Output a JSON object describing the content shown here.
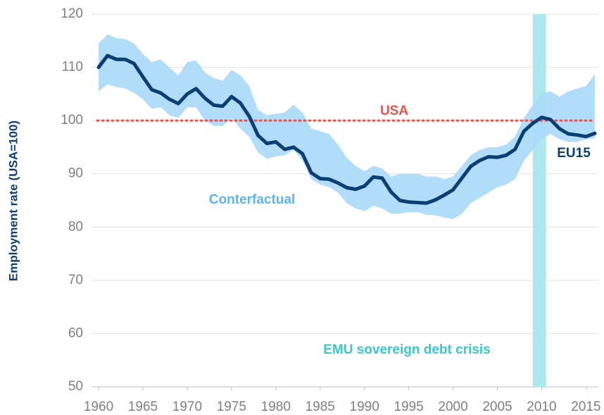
{
  "chart_data": {
    "type": "line",
    "y_axis_label": "Employment rate (USA=100)",
    "x": [
      1960,
      1961,
      1962,
      1963,
      1964,
      1965,
      1966,
      1967,
      1968,
      1969,
      1970,
      1971,
      1972,
      1973,
      1974,
      1975,
      1976,
      1977,
      1978,
      1979,
      1980,
      1981,
      1982,
      1983,
      1984,
      1985,
      1986,
      1987,
      1988,
      1989,
      1990,
      1991,
      1992,
      1993,
      1994,
      1995,
      1996,
      1997,
      1998,
      1999,
      2000,
      2001,
      2002,
      2003,
      2004,
      2005,
      2006,
      2007,
      2008,
      2009,
      2010,
      2011,
      2012,
      2013,
      2014,
      2015,
      2016
    ],
    "series": [
      {
        "name": "EU15",
        "color": "#0b3f73",
        "values": [
          110,
          112.2,
          111.5,
          111.5,
          110.7,
          108.2,
          105.8,
          105.2,
          104,
          103.2,
          105,
          106,
          104.2,
          102.9,
          102.7,
          104.5,
          103.3,
          100.8,
          97.2,
          95.7,
          96,
          94.6,
          95,
          93.8,
          90.2,
          89.1,
          89,
          88.3,
          87.4,
          87.1,
          87.7,
          89.4,
          89.2,
          86.6,
          85,
          84.7,
          84.6,
          84.5,
          85.1,
          86,
          87,
          89.2,
          91.4,
          92.5,
          93.2,
          93.1,
          93.5,
          94.6,
          98,
          99.5,
          100.6,
          100.2,
          98.5,
          97.5,
          97.3,
          97,
          97.6
        ]
      }
    ],
    "band": {
      "name": "Conterfactual",
      "color": "#aad9f8",
      "label_color": "#5bb5f0",
      "upper": [
        114.5,
        116.2,
        115.5,
        115.3,
        114.5,
        112.5,
        111,
        111.5,
        110,
        108.5,
        111,
        111.3,
        109,
        108,
        107.5,
        109.5,
        108.5,
        106.5,
        102,
        101,
        101.3,
        101.5,
        103,
        101.5,
        98.5,
        98,
        97.5,
        95.5,
        93,
        91.5,
        90.5,
        91.5,
        91,
        89.5,
        90,
        90,
        90,
        89.5,
        89.5,
        89,
        89.5,
        91.5,
        93.5,
        94.5,
        95,
        95,
        95.5,
        97,
        100.5,
        103,
        105,
        105.5,
        104.5,
        105.5,
        106,
        106.5,
        108.7
      ],
      "lower": [
        105.5,
        106.8,
        106.3,
        106,
        105.2,
        104,
        102.2,
        102.5,
        101,
        100.5,
        102.5,
        102.5,
        100,
        99,
        99,
        100.5,
        98.5,
        97,
        94,
        92.8,
        93.3,
        93.5,
        94.5,
        92.5,
        89,
        88,
        87.5,
        86.5,
        84.5,
        83.5,
        83,
        84,
        83.5,
        82.5,
        82.5,
        82.8,
        82.8,
        82.3,
        82.2,
        81.8,
        81.5,
        82.5,
        84.5,
        85.5,
        86.5,
        87.5,
        88,
        89,
        92.5,
        94.5,
        96.5,
        97.5,
        96.5,
        96,
        96,
        96.5,
        96.7
      ]
    },
    "reference_line": {
      "name": "USA",
      "value": 100,
      "color": "#e8534e"
    },
    "shaded_span": {
      "label": "EMU sovereign debt crisis",
      "x": [
        2009,
        2010.5
      ],
      "color": "#aee8ee",
      "label_color": "#3cc8c8"
    },
    "xlim": [
      1959.2,
      2016.4
    ],
    "ylim": [
      50,
      120
    ],
    "xticks": [
      1960,
      1965,
      1970,
      1975,
      1980,
      1985,
      1990,
      1995,
      2000,
      2005,
      2010,
      2015
    ],
    "yticks": [
      50,
      60,
      70,
      80,
      90,
      100,
      110,
      120
    ],
    "grid": true
  }
}
